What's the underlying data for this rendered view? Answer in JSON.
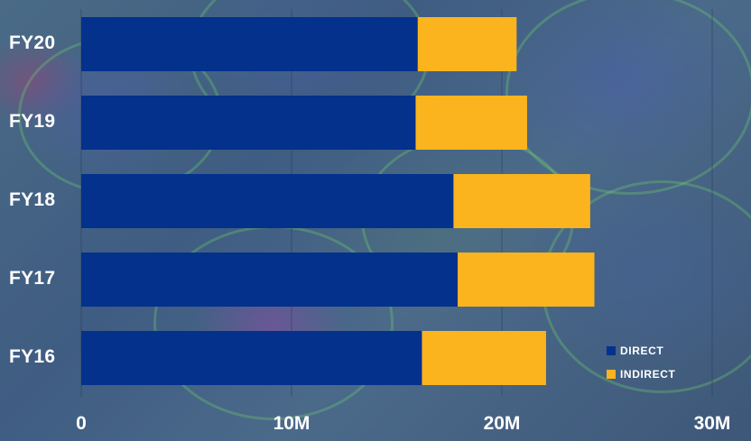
{
  "chart_data": {
    "type": "bar",
    "orientation": "horizontal",
    "stacked": true,
    "categories": [
      "FY20",
      "FY19",
      "FY18",
      "FY17",
      "FY16"
    ],
    "series": [
      {
        "name": "DIRECT",
        "color": "#03318c",
        "values": [
          16.0,
          15.9,
          17.7,
          17.9,
          16.2
        ]
      },
      {
        "name": "INDIRECT",
        "color": "#fbb41e",
        "values": [
          4.7,
          5.3,
          6.5,
          6.5,
          5.9
        ]
      }
    ],
    "x_ticks": [
      {
        "value": 0,
        "label": "0"
      },
      {
        "value": 10,
        "label": "10M"
      },
      {
        "value": 20,
        "label": "20M"
      },
      {
        "value": 30,
        "label": "30M"
      }
    ],
    "xlim": [
      0,
      30
    ],
    "grid": true,
    "legend_position": "bottom-right"
  }
}
